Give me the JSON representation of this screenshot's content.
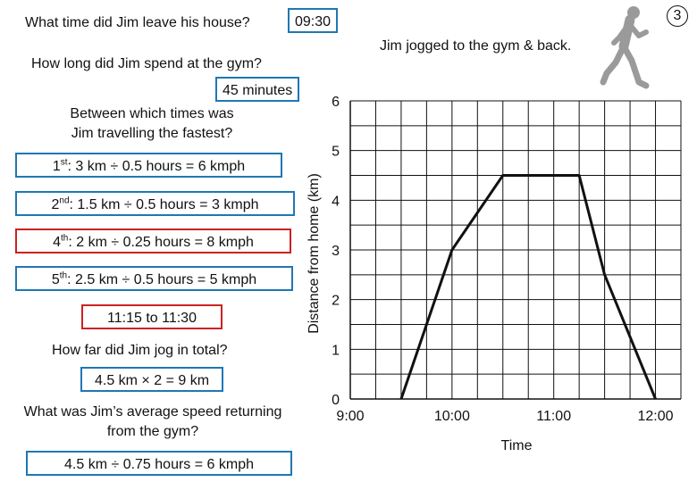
{
  "badge": "3",
  "q1": {
    "question": "What time did Jim leave his house?",
    "answer": "09:30"
  },
  "caption": "Jim jogged to the gym & back.",
  "q2": {
    "question": "How long did Jim spend at the gym?",
    "answer": "45 minutes"
  },
  "q3": {
    "question_line1": "Between which times was",
    "question_line2": "Jim travelling the fastest?",
    "legs": [
      {
        "ord": "1",
        "suffix": "st",
        "calc": ":  3 km ÷ 0.5 hours = 6 kmph",
        "highlight": false
      },
      {
        "ord": "2",
        "suffix": "nd",
        "calc": ":  1.5 km ÷ 0.5 hours = 3 kmph",
        "highlight": false
      },
      {
        "ord": "4",
        "suffix": "th",
        "calc": ":  2 km ÷ 0.25 hours = 8 kmph",
        "highlight": true
      },
      {
        "ord": "5",
        "suffix": "th",
        "calc": ":  2.5 km ÷ 0.5 hours = 5 kmph",
        "highlight": false
      }
    ],
    "answer": "11:15 to 11:30"
  },
  "q4": {
    "question": "How far did Jim jog in total?",
    "answer": "4.5 km × 2 = 9 km"
  },
  "q5": {
    "question_line1": "What was Jim’s average speed returning",
    "question_line2": "from the gym?",
    "answer": "4.5 km ÷ 0.75 hours = 6 kmph"
  },
  "colors": {
    "box_blue": "#1f77b4",
    "box_red": "#cc2222",
    "line": "#111111",
    "grid": "#111111"
  },
  "icons": {
    "runner": "runner-silhouette-icon"
  },
  "chart_data": {
    "type": "line",
    "title": "",
    "xlabel": "Time",
    "ylabel": "Distance from home (km)",
    "x_tick_labels": [
      "9:00",
      "10:00",
      "11:00",
      "12:00"
    ],
    "y_tick_labels": [
      "0",
      "1",
      "2",
      "3",
      "4",
      "5",
      "6"
    ],
    "xlim_hours": [
      9,
      12.25
    ],
    "ylim": [
      0,
      6
    ],
    "grid": true,
    "x_grid_step_minutes": 15,
    "y_grid_step_km": 0.5,
    "series": [
      {
        "x_hours": [
          9.5,
          10,
          10.5,
          11.25,
          11.5,
          12
        ],
        "y": [
          0,
          3,
          4.5,
          4.5,
          2.5,
          0
        ]
      }
    ]
  }
}
